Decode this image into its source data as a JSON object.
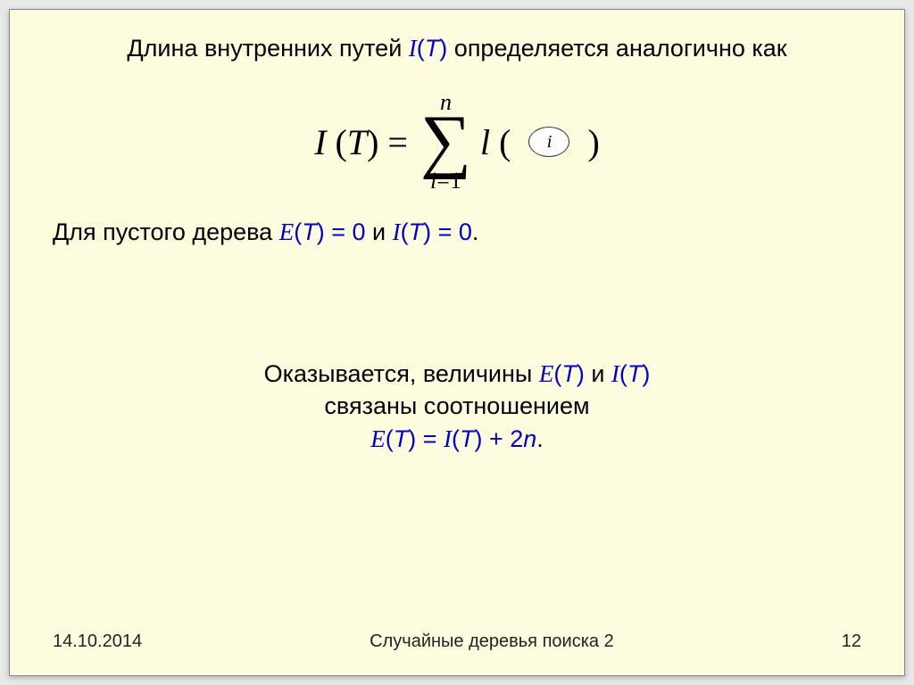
{
  "colors": {
    "slide_bg": "#fdfcdf",
    "text": "#000000",
    "accent": "#0000c8",
    "node_border": "#333333",
    "node_bg": "#ffffff"
  },
  "fonts": {
    "body": "Arial",
    "math": "Times New Roman",
    "body_size_pt": 27,
    "footer_size_pt": 20,
    "formula_size_pt": 40,
    "sigma_size_pt": 80
  },
  "line1": {
    "pre": "Длина внутренних путей ",
    "var": "I",
    "arg": "T",
    "post": " определяется аналогично как"
  },
  "formula": {
    "lhs_I": "I",
    "lhs_T": "T",
    "eq": "=",
    "sum_top": "n",
    "sum_sigma": "∑",
    "sum_bot_i": "i",
    "sum_bot_eq": "=1",
    "l": "l",
    "open": "(",
    "node_label": "i",
    "close": ")"
  },
  "line2": {
    "pre": "Для пустого дерева ",
    "E": "E",
    "T1": "T",
    "mid1": " = 0",
    "and": " и ",
    "I": "I",
    "T2": "T",
    "mid2": " = 0",
    "end": "."
  },
  "block2": {
    "l1_pre": "Оказывается, величины ",
    "l1_E": "E",
    "l1_T1": "T",
    "l1_and": " и ",
    "l1_I": "I",
    "l1_T2": "T",
    "l2": "связаны соотношением",
    "eq_E": "E",
    "eq_T1": "T",
    "eq_mid": " = ",
    "eq_I": "I",
    "eq_T2": "T",
    "eq_plus": " + 2",
    "eq_n": "n",
    "eq_end": "."
  },
  "footer": {
    "date": "14.10.2014",
    "title": "Случайные деревья поиска 2",
    "page": "12"
  }
}
